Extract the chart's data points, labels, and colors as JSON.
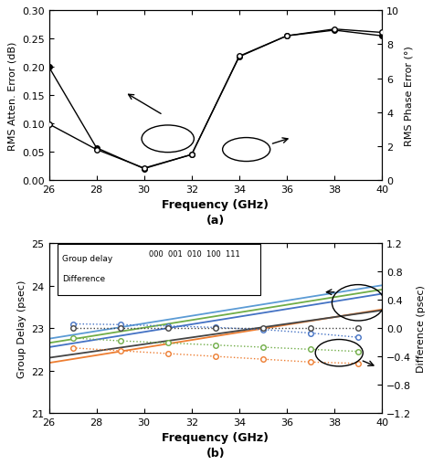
{
  "fig_width": 4.74,
  "fig_height": 5.1,
  "dpi": 100,
  "subplot_a": {
    "freq": [
      26,
      28,
      30,
      32,
      34,
      36,
      38,
      40
    ],
    "atten_error": [
      0.2,
      0.057,
      0.02,
      0.045,
      0.218,
      0.255,
      0.265,
      0.255
    ],
    "phase_error": [
      3.3,
      1.8,
      0.7,
      1.5,
      7.3,
      8.5,
      8.9,
      8.7
    ],
    "ylim_left": [
      0.0,
      0.3
    ],
    "ylim_right": [
      0,
      10
    ],
    "yticks_left": [
      0.0,
      0.05,
      0.1,
      0.15,
      0.2,
      0.25,
      0.3
    ],
    "yticks_right": [
      0,
      2,
      4,
      6,
      8,
      10
    ],
    "xlabel": "Frequency (GHz)",
    "ylabel_left": "RMS Atten. Error (dB)",
    "ylabel_right": "RMS Phase Error (°)",
    "label_a": "(a)",
    "xlim": [
      26,
      40
    ],
    "xticks": [
      26,
      28,
      30,
      32,
      34,
      36,
      38,
      40
    ]
  },
  "subplot_b": {
    "freq": [
      26,
      27,
      28,
      29,
      30,
      31,
      32,
      33,
      34,
      35,
      36,
      37,
      38,
      39,
      40
    ],
    "group_delay": {
      "000": [
        22.3,
        22.38,
        22.46,
        22.54,
        22.62,
        22.7,
        22.78,
        22.86,
        22.94,
        23.02,
        23.1,
        23.18,
        23.26,
        23.34,
        23.42
      ],
      "001": [
        22.55,
        22.64,
        22.73,
        22.82,
        22.91,
        23.0,
        23.09,
        23.18,
        23.27,
        23.36,
        23.45,
        23.54,
        23.63,
        23.72,
        23.81
      ],
      "010": [
        22.65,
        22.74,
        22.83,
        22.92,
        23.01,
        23.1,
        23.19,
        23.28,
        23.37,
        23.46,
        23.55,
        23.64,
        23.73,
        23.82,
        23.91
      ],
      "100": [
        22.75,
        22.84,
        22.93,
        23.02,
        23.11,
        23.2,
        23.29,
        23.38,
        23.47,
        23.56,
        23.65,
        23.74,
        23.83,
        23.92,
        24.01
      ],
      "111": [
        22.18,
        22.27,
        22.36,
        22.45,
        22.54,
        22.63,
        22.72,
        22.81,
        22.9,
        22.99,
        23.08,
        23.17,
        23.26,
        23.35,
        23.44
      ]
    },
    "difference_freq": [
      27,
      29,
      31,
      33,
      35,
      37,
      39
    ],
    "difference": {
      "000": [
        0.0,
        0.0,
        0.0,
        0.0,
        0.0,
        0.0,
        0.0
      ],
      "001": [
        0.06,
        0.05,
        0.03,
        0.01,
        -0.02,
        -0.07,
        -0.13
      ],
      "010": [
        -0.14,
        -0.18,
        -0.21,
        -0.24,
        -0.27,
        -0.3,
        -0.33
      ],
      "111": [
        -0.28,
        -0.32,
        -0.36,
        -0.4,
        -0.44,
        -0.48,
        -0.5
      ]
    },
    "colors_gd": {
      "000": "#444444",
      "001": "#4472c4",
      "010": "#70ad47",
      "100": "#5b9bd5",
      "111": "#ed7d31"
    },
    "colors_diff": {
      "000": "#444444",
      "001": "#4472c4",
      "010": "#70ad47",
      "111": "#ed7d31"
    },
    "ylim_left": [
      21,
      25
    ],
    "ylim_right": [
      -1.2,
      1.2
    ],
    "yticks_left": [
      21,
      22,
      23,
      24,
      25
    ],
    "yticks_right": [
      -1.2,
      -0.8,
      -0.4,
      0.0,
      0.4,
      0.8,
      1.2
    ],
    "xlabel": "Frequency (GHz)",
    "ylabel_left": "Group Delay (psec)",
    "ylabel_right": "Difference (psec)",
    "label_b": "(b)",
    "xlim": [
      26,
      40
    ],
    "xticks": [
      26,
      28,
      30,
      32,
      34,
      36,
      38,
      40
    ]
  }
}
